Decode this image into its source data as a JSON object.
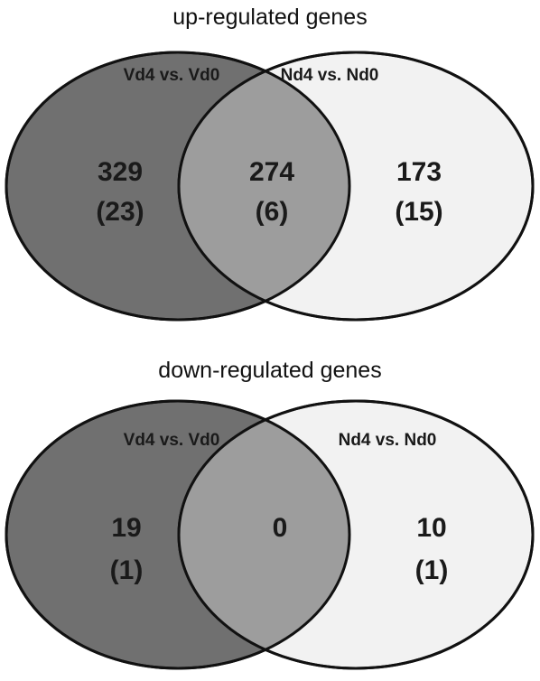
{
  "colors": {
    "left_set_fill": "#707070",
    "right_set_fill": "#f2f2f2",
    "overlap_fill": "#9d9d9d",
    "outline": "#111111",
    "text": "#1a1a1a"
  },
  "panels": [
    {
      "title": "up-regulated genes",
      "sets": {
        "left": "Vd4 vs. Vd0",
        "right": "Nd4 vs. Nd0"
      },
      "regions": {
        "left_only": {
          "count": "329",
          "sub": "(23)"
        },
        "overlap": {
          "count": "274",
          "sub": "(6)"
        },
        "right_only": {
          "count": "173",
          "sub": "(15)"
        }
      }
    },
    {
      "title": "down-regulated genes",
      "sets": {
        "left": "Vd4 vs. Vd0",
        "right": "Nd4 vs. Nd0"
      },
      "regions": {
        "left_only": {
          "count": "19",
          "sub": "(1)"
        },
        "overlap": {
          "count": "0",
          "sub": ""
        },
        "right_only": {
          "count": "10",
          "sub": "(1)"
        }
      }
    }
  ]
}
